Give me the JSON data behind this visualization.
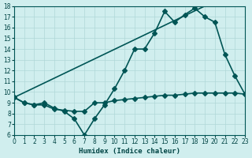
{
  "line1_x": [
    0,
    19
  ],
  "line1_y": [
    9.5,
    18
  ],
  "line2_x": [
    0,
    1,
    2,
    3,
    4,
    5,
    6,
    7,
    8,
    9,
    10,
    11,
    12,
    13,
    14,
    15,
    16,
    17,
    18,
    19,
    20,
    21,
    22,
    23
  ],
  "line2_y": [
    9.5,
    9.0,
    8.8,
    9.0,
    8.5,
    8.2,
    7.5,
    6.0,
    7.5,
    8.8,
    10.3,
    12.0,
    14.0,
    14.0,
    15.5,
    17.5,
    16.5,
    17.2,
    17.8,
    17.0,
    16.5,
    13.5,
    11.5,
    9.8
  ],
  "line3_x": [
    0,
    1,
    2,
    3,
    4,
    5,
    6,
    7,
    8,
    9,
    10,
    11,
    12,
    13,
    14,
    15,
    16,
    17,
    18,
    19,
    20,
    21,
    22,
    23
  ],
  "line3_y": [
    9.5,
    9.0,
    8.8,
    8.8,
    8.4,
    8.3,
    8.2,
    8.2,
    9.0,
    9.0,
    9.2,
    9.3,
    9.4,
    9.5,
    9.6,
    9.7,
    9.7,
    9.8,
    9.9,
    9.9,
    9.9,
    9.9,
    9.9,
    9.8
  ],
  "xlabel": "Humidex (Indice chaleur)",
  "ylabel": "",
  "xlim": [
    0,
    23
  ],
  "ylim": [
    6,
    18
  ],
  "xticks": [
    0,
    1,
    2,
    3,
    4,
    5,
    6,
    7,
    8,
    9,
    10,
    11,
    12,
    13,
    14,
    15,
    16,
    17,
    18,
    19,
    20,
    21,
    22,
    23
  ],
  "yticks": [
    6,
    7,
    8,
    9,
    10,
    11,
    12,
    13,
    14,
    15,
    16,
    17,
    18
  ],
  "bg_color": "#d0eeee",
  "grid_color": "#b0d8d8",
  "marker": "D",
  "markersize": 3,
  "lw": 1.2,
  "line_color": "#005555"
}
